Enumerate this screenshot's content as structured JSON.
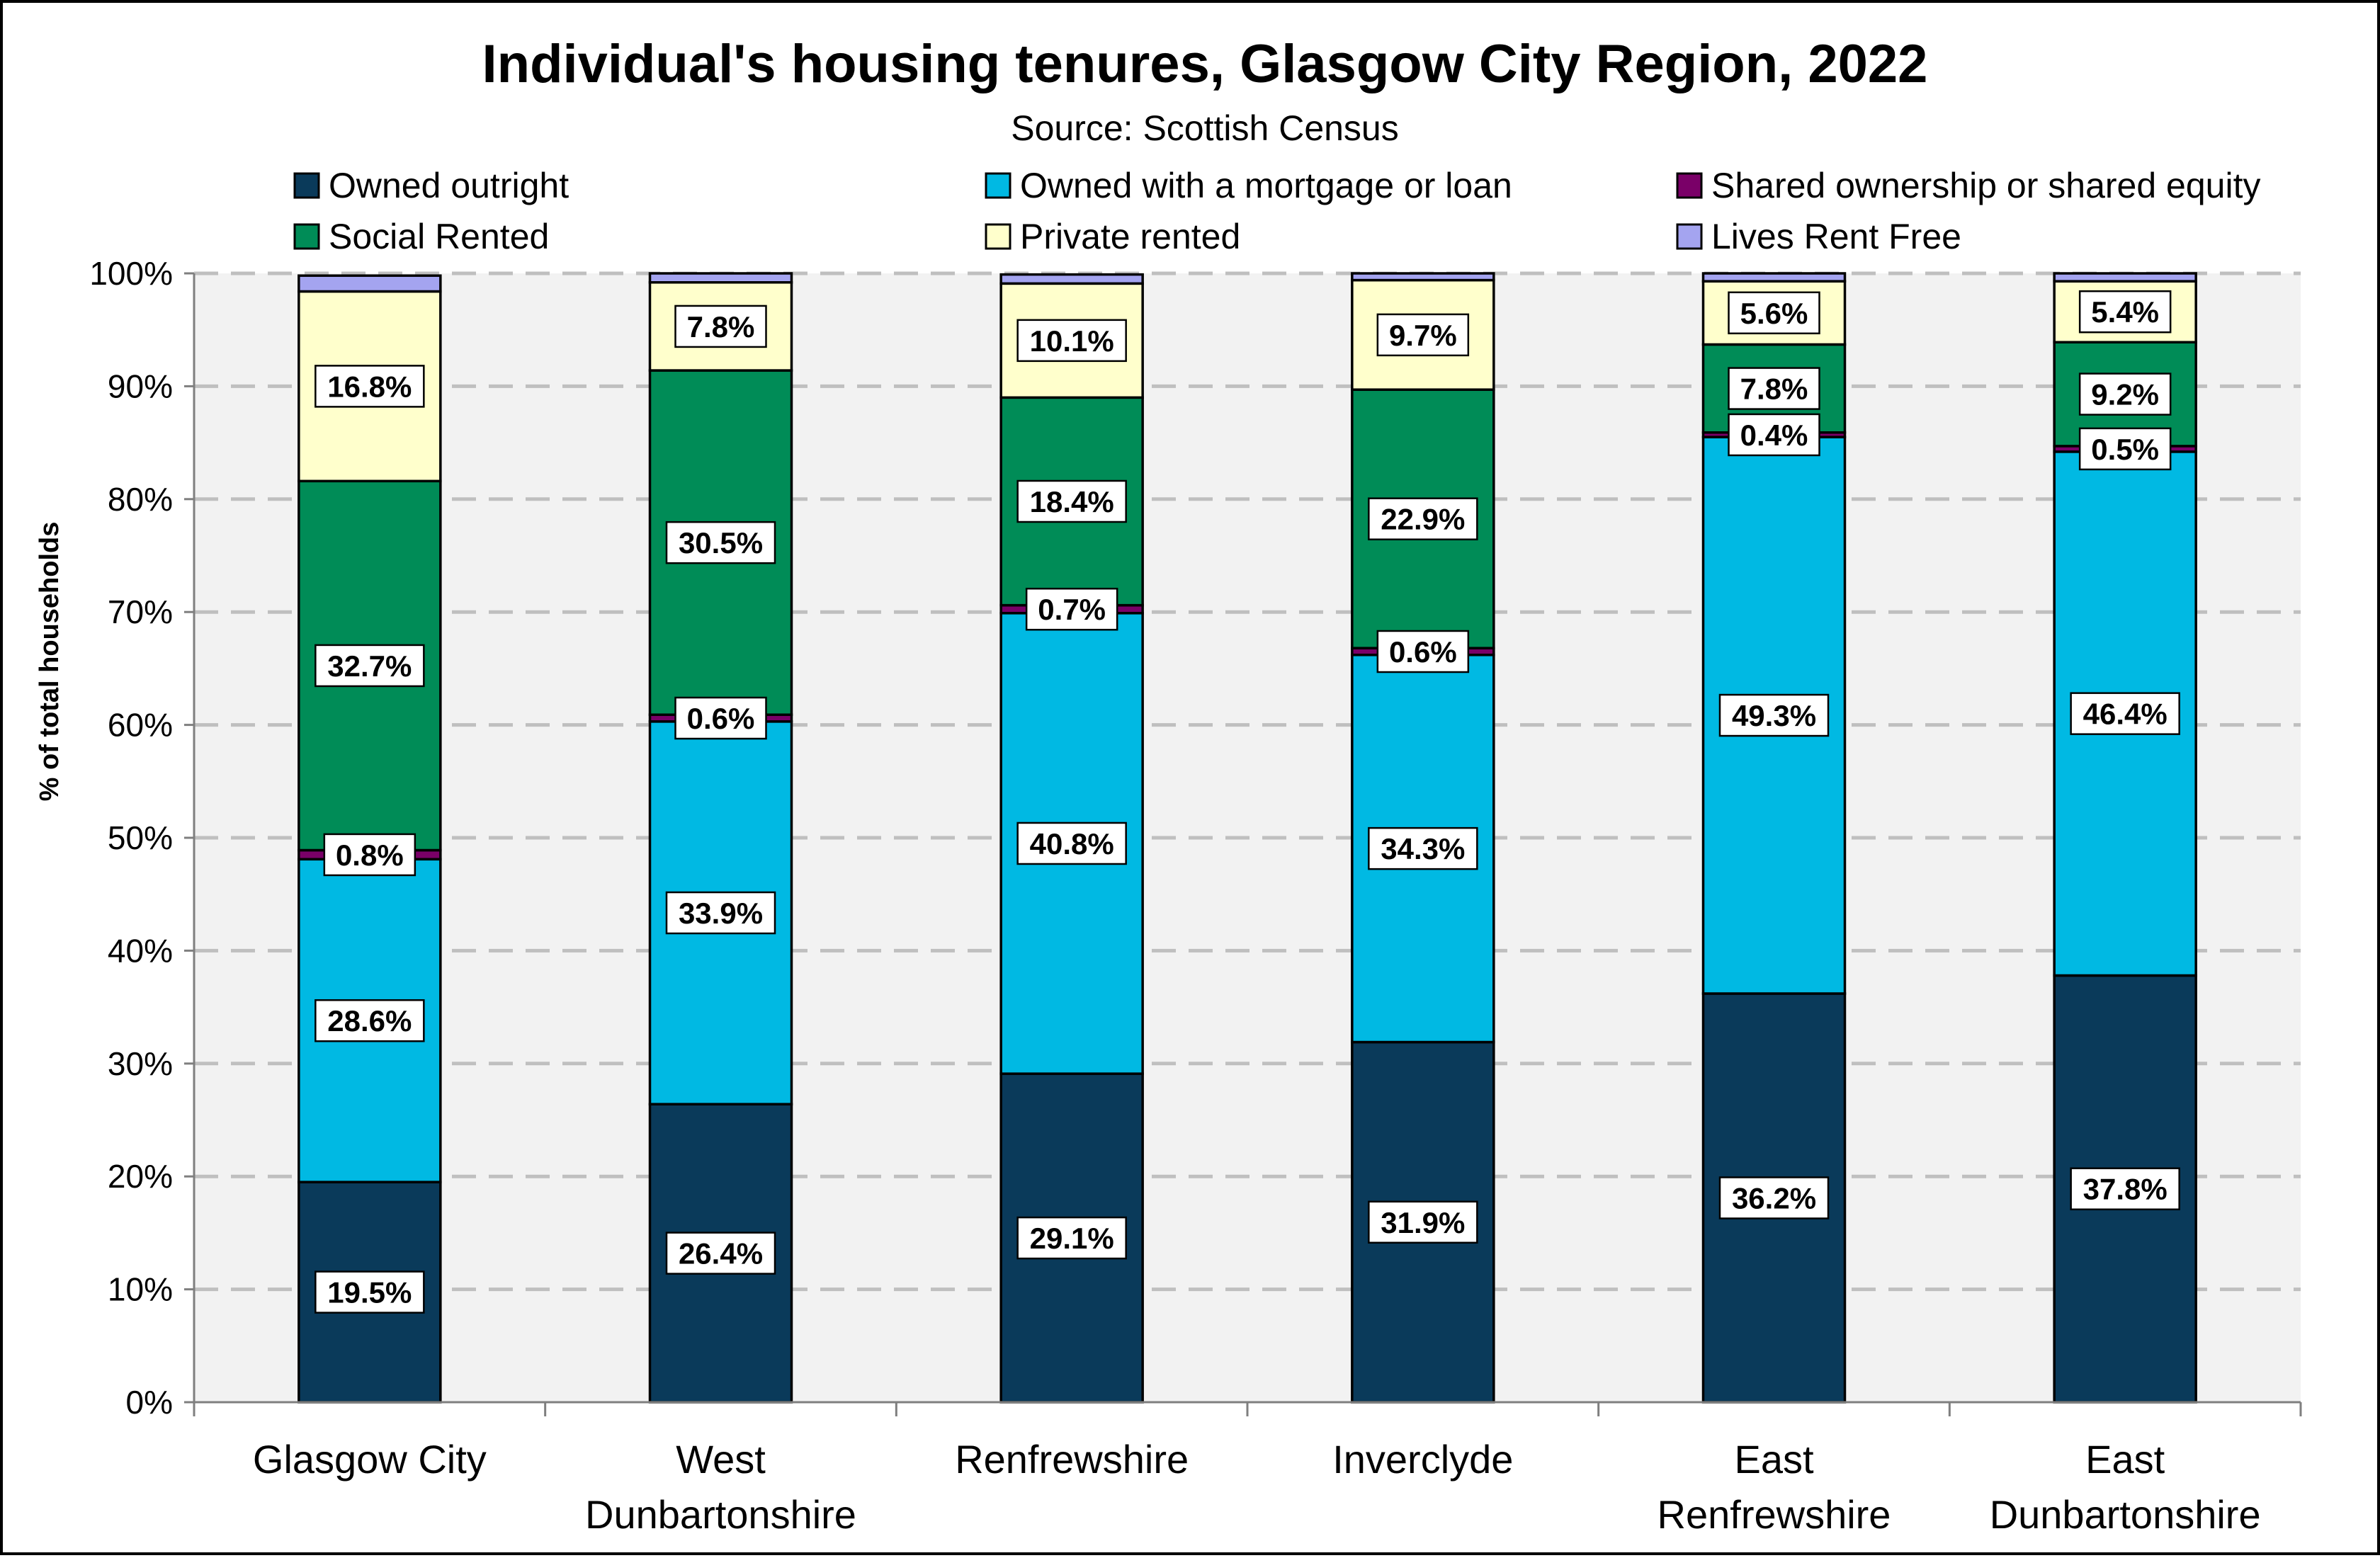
{
  "chart_data": {
    "type": "bar",
    "stacked": true,
    "title": "Individual's housing tenures, Glasgow City Region, 2022",
    "subtitle": "Source: Scottish Census",
    "ylabel": "% of total households",
    "xlabel": "",
    "ylim": [
      0,
      100
    ],
    "yticks": [
      "0%",
      "10%",
      "20%",
      "30%",
      "40%",
      "50%",
      "60%",
      "70%",
      "80%",
      "90%",
      "100%"
    ],
    "grid": "horizontal dashed",
    "legend_position": "top",
    "categories": [
      [
        "Glasgow City"
      ],
      [
        "West",
        "Dunbartonshire"
      ],
      [
        "Renfrewshire"
      ],
      [
        "Inverclyde"
      ],
      [
        "East",
        "Renfrewshire"
      ],
      [
        "East",
        "Dunbartonshire"
      ]
    ],
    "series": [
      {
        "name": "Owned outright",
        "color": "#0a3a5a",
        "values": [
          19.5,
          26.4,
          29.1,
          31.9,
          36.2,
          37.8
        ],
        "labels": [
          "19.5%",
          "26.4%",
          "29.1%",
          "31.9%",
          "36.2%",
          "37.8%"
        ]
      },
      {
        "name": "Owned with a mortgage or loan",
        "color": "#00b9e3",
        "values": [
          28.6,
          33.9,
          40.8,
          34.3,
          49.3,
          46.4
        ],
        "labels": [
          "28.6%",
          "33.9%",
          "40.8%",
          "34.3%",
          "49.3%",
          "46.4%"
        ]
      },
      {
        "name": "Shared ownership or shared equity",
        "color": "#7a0068",
        "values": [
          0.8,
          0.6,
          0.7,
          0.6,
          0.4,
          0.5
        ],
        "labels": [
          "0.8%",
          "0.6%",
          "0.7%",
          "0.6%",
          "0.4%",
          "0.5%"
        ]
      },
      {
        "name": "Social Rented",
        "color": "#008c57",
        "values": [
          32.7,
          30.5,
          18.4,
          22.9,
          7.8,
          9.2
        ],
        "labels": [
          "32.7%",
          "30.5%",
          "18.4%",
          "22.9%",
          "7.8%",
          "9.2%"
        ]
      },
      {
        "name": "Private rented",
        "color": "#ffffcc",
        "values": [
          16.8,
          7.8,
          10.1,
          9.7,
          5.6,
          5.4
        ],
        "labels": [
          "16.8%",
          "7.8%",
          "10.1%",
          "9.7%",
          "5.6%",
          "5.4%"
        ]
      },
      {
        "name": "Lives Rent Free",
        "color": "#a4a4f0",
        "values": [
          1.4,
          0.8,
          0.8,
          0.6,
          0.7,
          0.7
        ],
        "labels": []
      }
    ]
  }
}
